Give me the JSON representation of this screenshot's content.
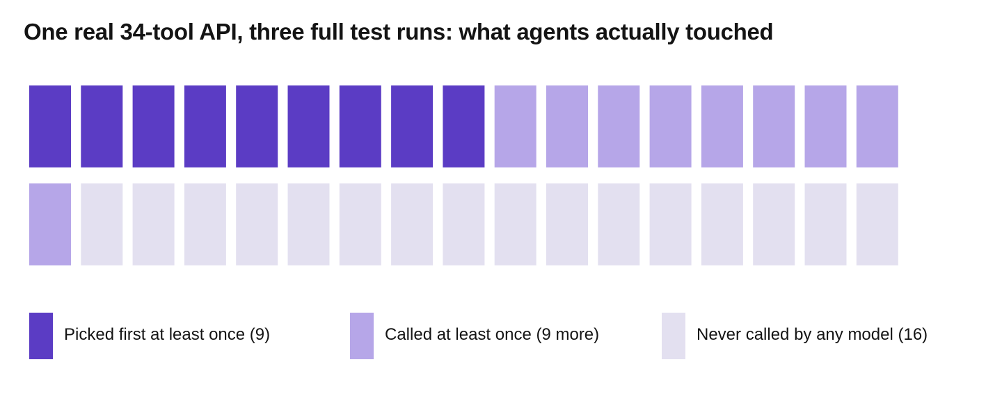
{
  "title": "One real 34-tool API, three full test runs: what agents actually touched",
  "colors": {
    "picked_first": "#5b3cc4",
    "called": "#b6a6e8",
    "never_called": "#e3e0f0"
  },
  "chart_data": {
    "type": "waffle",
    "title": "One real 34-tool API, three full test runs: what agents actually touched",
    "total_tools": 34,
    "columns": 17,
    "rows": 2,
    "fill_order": "row-major, left to right",
    "categories": [
      {
        "key": "picked_first",
        "label": "Picked first at least once (9)",
        "count": 9,
        "color": "#5b3cc4"
      },
      {
        "key": "called",
        "label": "Called at least once (9 more)",
        "count": 9,
        "color": "#b6a6e8"
      },
      {
        "key": "never_called",
        "label": "Never called by any model (16)",
        "count": 16,
        "color": "#e3e0f0"
      }
    ]
  },
  "legend": {
    "items": [
      {
        "label": "Picked first at least once (9)",
        "color": "#5b3cc4"
      },
      {
        "label": "Called at least once (9 more)",
        "color": "#b6a6e8"
      },
      {
        "label": "Never called by any model (16)",
        "color": "#e3e0f0"
      }
    ]
  }
}
